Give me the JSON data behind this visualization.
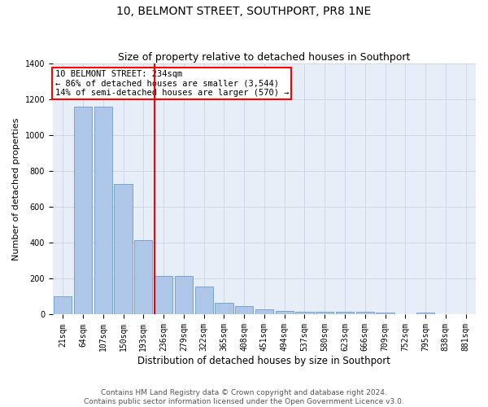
{
  "title": "10, BELMONT STREET, SOUTHPORT, PR8 1NE",
  "subtitle": "Size of property relative to detached houses in Southport",
  "xlabel": "Distribution of detached houses by size in Southport",
  "ylabel": "Number of detached properties",
  "categories": [
    "21sqm",
    "64sqm",
    "107sqm",
    "150sqm",
    "193sqm",
    "236sqm",
    "279sqm",
    "322sqm",
    "365sqm",
    "408sqm",
    "451sqm",
    "494sqm",
    "537sqm",
    "580sqm",
    "623sqm",
    "666sqm",
    "709sqm",
    "752sqm",
    "795sqm",
    "838sqm",
    "881sqm"
  ],
  "values": [
    100,
    1160,
    1160,
    730,
    415,
    215,
    215,
    155,
    65,
    48,
    30,
    20,
    15,
    15,
    15,
    15,
    10,
    0,
    10,
    0,
    0
  ],
  "bar_color": "#aec6e8",
  "bar_edge_color": "#5a8fc2",
  "grid_color": "#d0d8e8",
  "background_color": "#e8eef8",
  "property_label": "10 BELMONT STREET: 234sqm",
  "annotation_line1": "← 86% of detached houses are smaller (3,544)",
  "annotation_line2": "14% of semi-detached houses are larger (570) →",
  "redline_bar_index": 5,
  "ylim": [
    0,
    1400
  ],
  "yticks": [
    0,
    200,
    400,
    600,
    800,
    1000,
    1200,
    1400
  ],
  "footer_line1": "Contains HM Land Registry data © Crown copyright and database right 2024.",
  "footer_line2": "Contains public sector information licensed under the Open Government Licence v3.0.",
  "title_fontsize": 10,
  "subtitle_fontsize": 9,
  "xlabel_fontsize": 8.5,
  "ylabel_fontsize": 8,
  "tick_fontsize": 7,
  "footer_fontsize": 6.5,
  "annot_fontsize": 7.5
}
